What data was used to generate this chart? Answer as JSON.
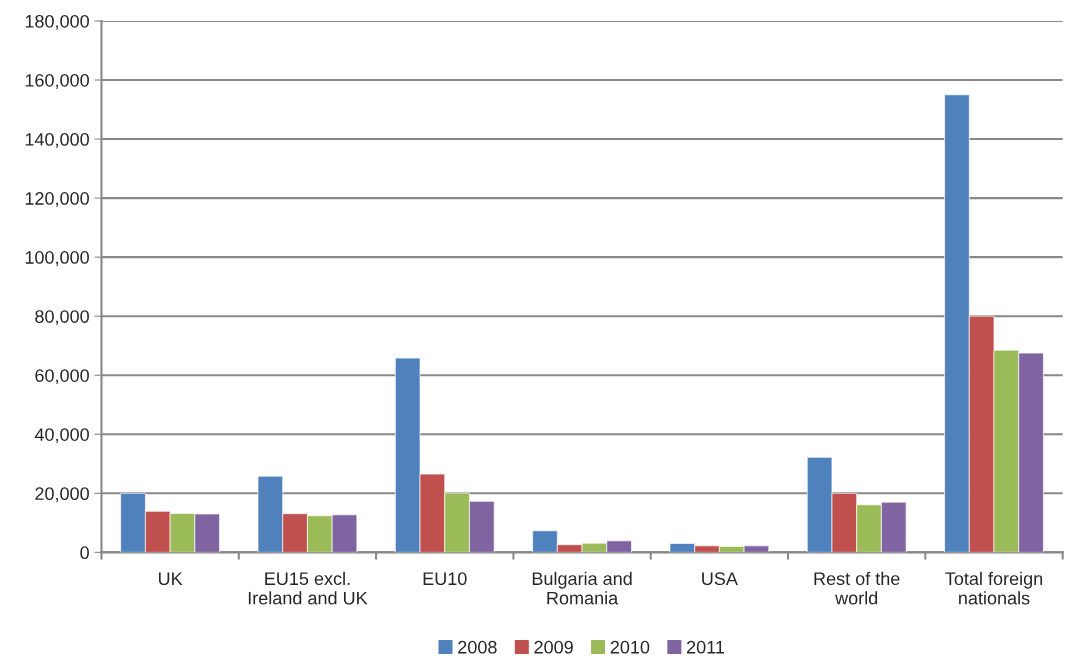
{
  "chart_data": {
    "type": "bar",
    "categories": [
      "UK",
      "EU15 excl.\nIreland and UK",
      "EU10",
      "Bulgaria and\nRomania",
      "USA",
      "Rest of the\nworld",
      "Total foreign\nnationals"
    ],
    "series": [
      {
        "name": "2008",
        "color": "#4f81bd",
        "values": [
          20000,
          25800,
          65800,
          7300,
          3000,
          32200,
          155000
        ]
      },
      {
        "name": "2009",
        "color": "#c0504d",
        "values": [
          13900,
          13100,
          26500,
          2600,
          2200,
          20000,
          80000
        ]
      },
      {
        "name": "2010",
        "color": "#9bbb59",
        "values": [
          13200,
          12400,
          20100,
          3100,
          2000,
          16100,
          68500
        ]
      },
      {
        "name": "2011",
        "color": "#8064a2",
        "values": [
          13000,
          12700,
          17300,
          3900,
          2200,
          17000,
          67500
        ]
      }
    ],
    "ylim": [
      0,
      180000
    ],
    "yticks": [
      {
        "value": 0,
        "label": "0"
      },
      {
        "value": 20000,
        "label": "20,000"
      },
      {
        "value": 40000,
        "label": "40,000"
      },
      {
        "value": 60000,
        "label": "60,000"
      },
      {
        "value": 80000,
        "label": "80,000"
      },
      {
        "value": 100000,
        "label": "100,000"
      },
      {
        "value": 120000,
        "label": "120,000"
      },
      {
        "value": 140000,
        "label": "140,000"
      },
      {
        "value": 160000,
        "label": "160,000"
      },
      {
        "value": 180000,
        "label": "180,000"
      }
    ],
    "grid": "y",
    "legend": "bottom"
  }
}
